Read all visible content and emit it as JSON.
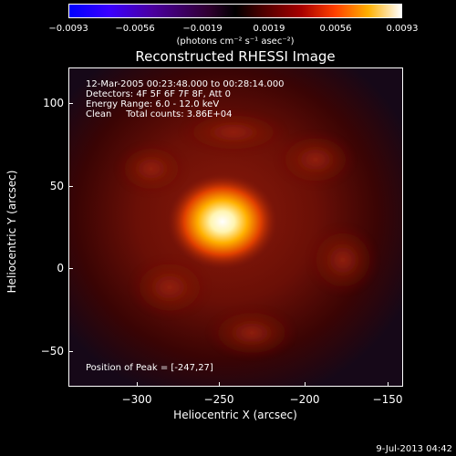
{
  "colorbar": {
    "ticks": [
      "−0.0093",
      "−0.0056",
      "−0.0019",
      "0.0019",
      "0.0056",
      "0.0093"
    ],
    "units": "(photons cm⁻² s⁻¹ asec⁻²)"
  },
  "title": "Reconstructed RHESSI Image",
  "info": {
    "line1": "12-Mar-2005 00:23:48.000 to 00:28:14.000",
    "line2": "Detectors: 4F 5F 6F 7F 8F, Att 0",
    "line3": "Energy Range: 6.0 - 12.0 keV",
    "line4": "Clean     Total counts: 3.86E+04",
    "peak": "Position of Peak = [-247,27]"
  },
  "axes": {
    "xlabel": "Heliocentric X (arcsec)",
    "ylabel": "Heliocentric Y (arcsec)",
    "xticks": [
      "−300",
      "−250",
      "−200",
      "−150"
    ],
    "yticks": [
      "100",
      "50",
      "0",
      "−50"
    ]
  },
  "footer_date": "9-Jul-2013 04:42",
  "colors": {
    "background": "#000000",
    "peak": "#ffffff",
    "halo": "#7a1208"
  }
}
